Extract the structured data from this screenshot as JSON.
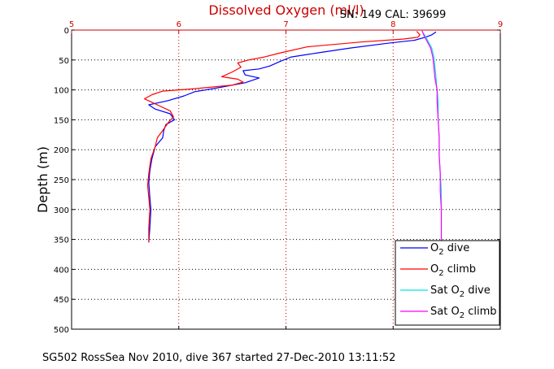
{
  "title": "Dissolved Oxygen (ml/l)",
  "serial_info": "SN: 149  CAL: 39699",
  "footer": "SG502 RossSea Nov 2010, dive 367 started 27-Dec-2010 13:11:52",
  "colors": {
    "dive": "#0000ff",
    "climb": "#ff0000",
    "sat_dive": "#00e5e5",
    "sat_climb": "#ff00ff",
    "axis_x": "#cc0000",
    "title": "#cc0000"
  },
  "legend": [
    {
      "prefix": "O",
      "sub": "2",
      "suffix": " dive",
      "color": "#0000ff"
    },
    {
      "prefix": "O",
      "sub": "2",
      "suffix": " climb",
      "color": "#ff0000"
    },
    {
      "prefix": "Sat O",
      "sub": "2",
      "suffix": " dive",
      "color": "#00e5e5"
    },
    {
      "prefix": "Sat O",
      "sub": "2",
      "suffix": " climb",
      "color": "#ff00ff"
    }
  ],
  "chart_data": {
    "type": "line",
    "title": "Dissolved Oxygen (ml/l)",
    "xlabel": "",
    "ylabel": "Depth (m)",
    "xlim": [
      5,
      9
    ],
    "ylim": [
      0,
      500
    ],
    "y_reversed": true,
    "x_axis_position": "top",
    "xticks": [
      5,
      6,
      7,
      8,
      9
    ],
    "xtick_labels": [
      "5",
      "6",
      "7",
      "8",
      "9"
    ],
    "yticks": [
      0,
      50,
      100,
      150,
      200,
      250,
      300,
      350,
      400,
      450,
      500
    ],
    "ytick_labels": [
      "0",
      "50",
      "100",
      "150",
      "200",
      "250",
      "300",
      "350",
      "400",
      "450",
      "500"
    ],
    "grid": true,
    "legend_position": "bottom-right",
    "series": [
      {
        "name": "O2 dive",
        "color": "#0000ff",
        "points": [
          [
            8.4,
            3
          ],
          [
            8.36,
            8
          ],
          [
            8.3,
            12
          ],
          [
            8.2,
            17
          ],
          [
            7.95,
            22
          ],
          [
            7.6,
            30
          ],
          [
            7.3,
            38
          ],
          [
            7.05,
            45
          ],
          [
            6.95,
            52
          ],
          [
            6.85,
            60
          ],
          [
            6.75,
            65
          ],
          [
            6.6,
            68
          ],
          [
            6.62,
            75
          ],
          [
            6.75,
            80
          ],
          [
            6.62,
            88
          ],
          [
            6.35,
            97
          ],
          [
            6.15,
            103
          ],
          [
            6.05,
            110
          ],
          [
            5.9,
            118
          ],
          [
            5.72,
            125
          ],
          [
            5.78,
            132
          ],
          [
            5.92,
            140
          ],
          [
            5.96,
            150
          ],
          [
            5.88,
            158
          ],
          [
            5.86,
            168
          ],
          [
            5.85,
            180
          ],
          [
            5.78,
            195
          ],
          [
            5.75,
            215
          ],
          [
            5.73,
            235
          ],
          [
            5.72,
            255
          ],
          [
            5.73,
            280
          ],
          [
            5.74,
            300
          ],
          [
            5.73,
            330
          ],
          [
            5.72,
            355
          ]
        ]
      },
      {
        "name": "O2 climb",
        "color": "#ff0000",
        "points": [
          [
            8.22,
            2
          ],
          [
            8.25,
            8
          ],
          [
            8.23,
            12
          ],
          [
            8.1,
            15
          ],
          [
            7.7,
            20
          ],
          [
            7.2,
            28
          ],
          [
            6.95,
            38
          ],
          [
            6.8,
            45
          ],
          [
            6.65,
            50
          ],
          [
            6.55,
            55
          ],
          [
            6.58,
            62
          ],
          [
            6.5,
            70
          ],
          [
            6.4,
            78
          ],
          [
            6.55,
            82
          ],
          [
            6.6,
            87
          ],
          [
            6.5,
            92
          ],
          [
            6.15,
            98
          ],
          [
            5.85,
            102
          ],
          [
            5.75,
            108
          ],
          [
            5.68,
            115
          ],
          [
            5.8,
            125
          ],
          [
            5.92,
            135
          ],
          [
            5.95,
            145
          ],
          [
            5.9,
            155
          ],
          [
            5.85,
            168
          ],
          [
            5.8,
            180
          ],
          [
            5.78,
            195
          ],
          [
            5.74,
            215
          ],
          [
            5.72,
            240
          ],
          [
            5.71,
            260
          ],
          [
            5.72,
            280
          ],
          [
            5.73,
            300
          ],
          [
            5.72,
            330
          ],
          [
            5.72,
            355
          ]
        ]
      },
      {
        "name": "Sat O2 dive",
        "color": "#00e5e5",
        "points": [
          [
            8.27,
            2
          ],
          [
            8.3,
            10
          ],
          [
            8.33,
            20
          ],
          [
            8.36,
            30
          ],
          [
            8.38,
            45
          ],
          [
            8.39,
            60
          ],
          [
            8.4,
            80
          ],
          [
            8.41,
            100
          ],
          [
            8.42,
            120
          ],
          [
            8.42,
            150
          ],
          [
            8.43,
            180
          ],
          [
            8.43,
            210
          ],
          [
            8.44,
            240
          ],
          [
            8.45,
            270
          ],
          [
            8.45,
            300
          ],
          [
            8.45,
            330
          ],
          [
            8.45,
            355
          ]
        ]
      },
      {
        "name": "Sat O2 climb",
        "color": "#ff00ff",
        "points": [
          [
            8.27,
            1
          ],
          [
            8.29,
            10
          ],
          [
            8.32,
            20
          ],
          [
            8.35,
            30
          ],
          [
            8.37,
            45
          ],
          [
            8.38,
            60
          ],
          [
            8.39,
            80
          ],
          [
            8.41,
            100
          ],
          [
            8.41,
            120
          ],
          [
            8.42,
            150
          ],
          [
            8.43,
            180
          ],
          [
            8.43,
            210
          ],
          [
            8.44,
            240
          ],
          [
            8.44,
            270
          ],
          [
            8.45,
            300
          ],
          [
            8.45,
            330
          ],
          [
            8.45,
            355
          ]
        ]
      }
    ]
  }
}
